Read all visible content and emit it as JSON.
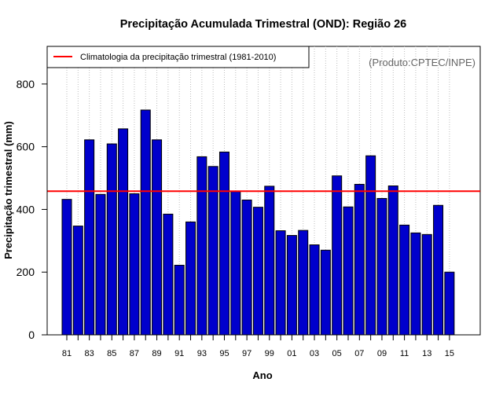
{
  "chart_data": {
    "type": "bar",
    "title": "Precipitação Acumulada Trimestral (OND): Região 26",
    "xlabel": "Ano",
    "ylabel": "Precipitação trimestral (mm)",
    "ylim": [
      0,
      920
    ],
    "yticks": [
      0,
      200,
      400,
      600,
      800
    ],
    "grid": "vertical-dotted",
    "source": "(Produto:CPTEC/INPE)",
    "bar_color": "#0000CC",
    "categories": [
      "81",
      "82",
      "83",
      "84",
      "85",
      "86",
      "87",
      "88",
      "89",
      "90",
      "91",
      "92",
      "93",
      "94",
      "95",
      "96",
      "97",
      "98",
      "99",
      "00",
      "01",
      "02",
      "03",
      "04",
      "05",
      "06",
      "07",
      "08",
      "09",
      "10",
      "11",
      "12",
      "13",
      "14",
      "15"
    ],
    "tick_labels": [
      "81",
      "83",
      "85",
      "87",
      "89",
      "91",
      "93",
      "95",
      "97",
      "99",
      "01",
      "03",
      "05",
      "07",
      "09",
      "11",
      "13",
      "15"
    ],
    "values": [
      432,
      347,
      622,
      448,
      609,
      657,
      450,
      717,
      622,
      385,
      222,
      360,
      568,
      537,
      583,
      457,
      430,
      407,
      474,
      332,
      317,
      333,
      287,
      270,
      507,
      408,
      480,
      571,
      435,
      475,
      350,
      325,
      320,
      413,
      200
    ],
    "reference_line": {
      "label": "Climatologia da precipitação trimestral (1981-2010)",
      "value": 458,
      "color": "#FF0000"
    },
    "legend_position": "top-left"
  }
}
